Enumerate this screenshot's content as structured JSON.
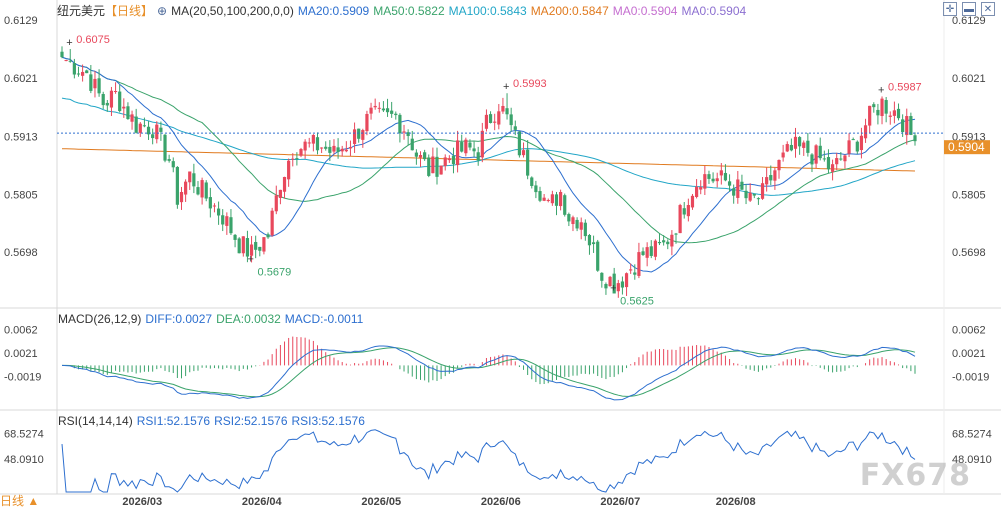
{
  "header": {
    "title": "纽元美元",
    "period_label": "【日线】",
    "ma_indicator": "MA(20,50,100,200,0,0)",
    "ma_values": [
      {
        "text": "MA20:0.5909",
        "color": "#2d6fcf"
      },
      {
        "text": "MA50:0.5822",
        "color": "#3aa36b"
      },
      {
        "text": "MA100:0.5843",
        "color": "#22a6c7"
      },
      {
        "text": "MA200:0.5847",
        "color": "#e07a1f"
      },
      {
        "text": "MA0:0.5904",
        "color": "#c56fd0"
      },
      {
        "text": "MA0:0.5904",
        "color": "#8c6fd0"
      }
    ]
  },
  "macd_header": {
    "title": "MACD(26,12,9)",
    "values": [
      {
        "text": "DIFF:0.0027",
        "color": "#2d6fcf"
      },
      {
        "text": "DEA:0.0032",
        "color": "#3aa36b"
      },
      {
        "text": "MACD:-0.0011",
        "color": "#2d6fcf"
      }
    ]
  },
  "rsi_header": {
    "title": "RSI(14,14,14)",
    "values": [
      {
        "text": "RSI1:52.1576",
        "color": "#2d6fcf"
      },
      {
        "text": "RSI2:52.1576",
        "color": "#2d6fcf"
      },
      {
        "text": "RSI3:52.1576",
        "color": "#2d6fcf"
      }
    ]
  },
  "timeframe_label": "日线 ▲",
  "watermark": "FX678",
  "colors": {
    "up": "#e8485c",
    "down": "#3aa36b",
    "ma20": "#2d6fcf",
    "ma50": "#3aa36b",
    "ma100": "#22a6c7",
    "ma200": "#e07a1f",
    "last_price_bg": "#e8902a"
  },
  "chart_data": [
    {
      "type": "candlestick",
      "title": "纽元美元 【日线】",
      "y_ticks": [
        "0.6129",
        "0.6021",
        "0.5913",
        "0.5805",
        "0.5698"
      ],
      "ylim": [
        0.56,
        0.614
      ],
      "x_ticks": [
        "2026/03",
        "2026/04",
        "2026/05",
        "2026/06",
        "2026/07",
        "2026/08"
      ],
      "last_price": "0.5904",
      "annotations": [
        {
          "label": "0.6075",
          "kind": "high"
        },
        {
          "label": "0.5679",
          "kind": "low"
        },
        {
          "label": "0.5993",
          "kind": "high"
        },
        {
          "label": "0.5625",
          "kind": "low"
        },
        {
          "label": "0.5987",
          "kind": "high"
        }
      ],
      "close_anchors": [
        [
          0,
          0.606
        ],
        [
          6,
          0.603
        ],
        [
          10,
          0.5975
        ],
        [
          13,
          0.599
        ],
        [
          18,
          0.5935
        ],
        [
          22,
          0.593
        ],
        [
          26,
          0.587
        ],
        [
          28,
          0.58
        ],
        [
          31,
          0.584
        ],
        [
          35,
          0.58
        ],
        [
          39,
          0.5765
        ],
        [
          43,
          0.5715
        ],
        [
          46,
          0.5695
        ],
        [
          50,
          0.573
        ],
        [
          53,
          0.583
        ],
        [
          56,
          0.589
        ],
        [
          59,
          0.5895
        ],
        [
          63,
          0.5895
        ],
        [
          66,
          0.588
        ],
        [
          70,
          0.5905
        ],
        [
          73,
          0.5935
        ],
        [
          75,
          0.595
        ],
        [
          78,
          0.5945
        ],
        [
          81,
          0.595
        ],
        [
          84,
          0.592
        ],
        [
          86,
          0.588
        ],
        [
          89,
          0.585
        ],
        [
          92,
          0.5865
        ],
        [
          95,
          0.588
        ],
        [
          98,
          0.589
        ],
        [
          101,
          0.5885
        ],
        [
          103,
          0.5935
        ],
        [
          106,
          0.5975
        ],
        [
          108,
          0.5945
        ],
        [
          111,
          0.589
        ],
        [
          113,
          0.5855
        ],
        [
          116,
          0.5815
        ],
        [
          118,
          0.578
        ],
        [
          121,
          0.581
        ],
        [
          123,
          0.5765
        ],
        [
          126,
          0.576
        ],
        [
          128,
          0.572
        ],
        [
          131,
          0.566
        ],
        [
          134,
          0.564
        ],
        [
          136,
          0.565
        ],
        [
          138,
          0.567
        ],
        [
          141,
          0.5695
        ],
        [
          144,
          0.57
        ],
        [
          146,
          0.571
        ],
        [
          149,
          0.575
        ],
        [
          152,
          0.5805
        ],
        [
          155,
          0.584
        ],
        [
          158,
          0.5835
        ],
        [
          161,
          0.583
        ],
        [
          164,
          0.5815
        ],
        [
          167,
          0.579
        ],
        [
          170,
          0.5805
        ],
        [
          173,
          0.585
        ],
        [
          176,
          0.588
        ],
        [
          178,
          0.589
        ],
        [
          181,
          0.5885
        ],
        [
          184,
          0.587
        ],
        [
          187,
          0.585
        ],
        [
          190,
          0.588
        ],
        [
          193,
          0.5905
        ],
        [
          195,
          0.5935
        ],
        [
          197,
          0.596
        ],
        [
          199,
          0.5975
        ],
        [
          201,
          0.5965
        ],
        [
          203,
          0.5955
        ],
        [
          205,
          0.593
        ],
        [
          206,
          0.5915
        ],
        [
          207,
          0.5904
        ]
      ],
      "dates": [
        "2026-02-09",
        "2026-08-31"
      ]
    },
    {
      "type": "bar",
      "title": "MACD(26,12,9)",
      "y_ticks": [
        "0.0062",
        "0.0021",
        "-0.0019"
      ],
      "ylim": [
        -0.0065,
        0.0075
      ],
      "series": [
        {
          "name": "DIFF",
          "last": 0.0027
        },
        {
          "name": "DEA",
          "last": 0.0032
        },
        {
          "name": "MACD",
          "last": -0.0011
        }
      ]
    },
    {
      "type": "line",
      "title": "RSI(14,14,14)",
      "y_ticks": [
        "68.5274",
        "48.0910"
      ],
      "ylim": [
        22,
        76
      ],
      "series": [
        {
          "name": "RSI1",
          "last": 52.1576
        }
      ]
    }
  ]
}
